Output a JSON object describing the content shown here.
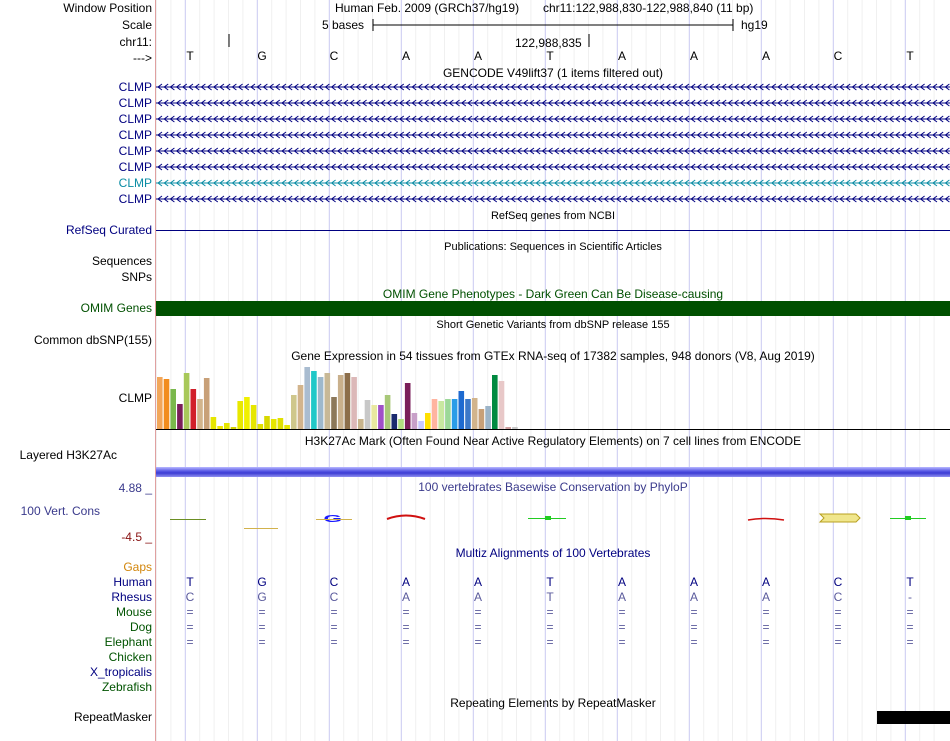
{
  "colors": {
    "navy": "#000080",
    "darkgreen": "#005300",
    "purple": "#3a3a8c",
    "maroon": "#881111",
    "gaps": "#d2860c",
    "teal": "#0a8ca4",
    "omim": "#005000"
  },
  "header": {
    "window_position_label": "Window Position",
    "scale_label": "Scale",
    "chrom_label": "chr11:",
    "strand_label": "--->",
    "assembly": "Human Feb. 2009 (GRCh37/hg19)",
    "position": "chr11:122,988,830-122,988,840 (11 bp)",
    "scale_text": "5 bases",
    "db": "hg19",
    "coordinate": "122,988,835"
  },
  "bases": [
    "T",
    "G",
    "C",
    "A",
    "A",
    "T",
    "A",
    "A",
    "A",
    "C",
    "T"
  ],
  "gencode": {
    "title": "GENCODE V49lift37 (1 items filtered out)",
    "genes": [
      "CLMP",
      "CLMP",
      "CLMP",
      "CLMP",
      "CLMP",
      "CLMP",
      "CLMP",
      "CLMP"
    ]
  },
  "refseq": {
    "title": "RefSeq genes from NCBI",
    "label": "RefSeq Curated"
  },
  "publications": {
    "title": "Publications: Sequences in Scientific Articles",
    "labels": [
      "Sequences",
      "SNPs"
    ]
  },
  "omim": {
    "title": "OMIM Gene Phenotypes - Dark Green Can Be Disease-causing",
    "label": "OMIM Genes"
  },
  "dbsnp": {
    "title": "Short Genetic Variants from dbSNP release 155",
    "label": "Common dbSNP(155)"
  },
  "gtex": {
    "title": "Gene Expression in 54 tissues from GTEx RNA-seq of 17382 samples, 948 donors (V8, Aug 2019)",
    "label": "CLMP",
    "values": [
      52,
      50,
      40,
      25,
      56,
      40,
      30,
      51,
      12,
      3,
      6,
      2,
      28,
      32,
      24,
      5,
      13,
      10,
      11,
      4,
      34,
      44,
      62,
      58,
      52,
      56,
      32,
      54,
      56,
      52,
      10,
      29,
      24,
      24,
      34,
      15,
      10,
      46,
      16,
      8,
      16,
      30,
      28,
      30,
      30,
      38,
      30,
      31,
      20,
      23,
      54,
      48,
      2,
      2
    ]
  },
  "h3k27ac": {
    "title": "H3K27Ac Mark (Often Found Near Active Regulatory Elements) on 7 cell lines from ENCODE",
    "label": "Layered H3K27Ac"
  },
  "cons": {
    "title": "100 vertebrates Basewise Conservation by PhyloP",
    "label": "100 Vert. Cons",
    "max": "4.88 _",
    "min": "-4.5 _"
  },
  "multiz": {
    "title": "Multiz Alignments of 100 Vertebrates",
    "gaps_label": "Gaps",
    "species": [
      {
        "name": "Human",
        "row": [
          "T",
          "G",
          "C",
          "A",
          "A",
          "T",
          "A",
          "A",
          "A",
          "C",
          "T"
        ]
      },
      {
        "name": "Rhesus",
        "row": [
          "C",
          "G",
          "C",
          "A",
          "A",
          "T",
          "A",
          "A",
          "A",
          "C",
          "-"
        ]
      },
      {
        "name": "Mouse",
        "row": [
          "=",
          "=",
          "=",
          "=",
          "=",
          "=",
          "=",
          "=",
          "=",
          "=",
          "="
        ]
      },
      {
        "name": "Dog",
        "row": [
          "=",
          "=",
          "=",
          "=",
          "=",
          "=",
          "=",
          "=",
          "=",
          "=",
          "="
        ]
      },
      {
        "name": "Elephant",
        "row": [
          "=",
          "=",
          "=",
          "=",
          "=",
          "=",
          "=",
          "=",
          "=",
          "=",
          "="
        ]
      },
      {
        "name": "Chicken",
        "row": []
      },
      {
        "name": "X_tropicalis",
        "row": []
      },
      {
        "name": "Zebrafish",
        "row": []
      }
    ]
  },
  "repeatmasker": {
    "title": "Repeating Elements by RepeatMasker",
    "label": "RepeatMasker"
  }
}
